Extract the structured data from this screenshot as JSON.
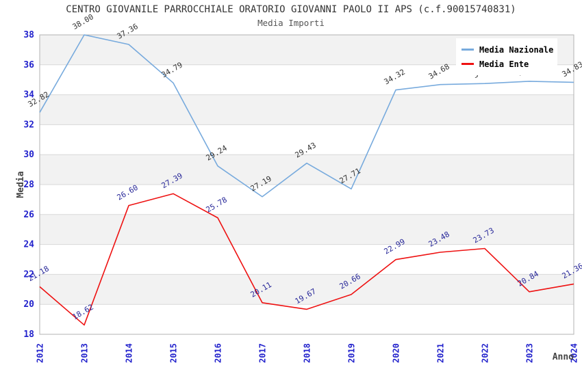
{
  "header": {
    "title": "CENTRO GIOVANILE PARROCCHIALE ORATORIO GIOVANNI PAOLO II APS (c.f.90015740831)",
    "subtitle": "Media Importi"
  },
  "legend": {
    "items": [
      {
        "label": "Media Nazionale",
        "color": "#77aadd"
      },
      {
        "label": "Media Ente",
        "color": "#ee1111"
      }
    ]
  },
  "chart_data": {
    "type": "line",
    "title": "CENTRO GIOVANILE PARROCCHIALE ORATORIO GIOVANNI PAOLO II APS (c.f.90015740831)",
    "subtitle": "Media Importi",
    "xlabel": "Anno",
    "ylabel": "Media",
    "x": [
      2012,
      2013,
      2014,
      2015,
      2016,
      2017,
      2018,
      2019,
      2020,
      2021,
      2022,
      2023,
      2024
    ],
    "series": [
      {
        "name": "Media Nazionale",
        "color": "#77aadd",
        "label_color": "#333333",
        "values": [
          32.82,
          38.0,
          37.36,
          34.79,
          29.24,
          27.19,
          29.43,
          27.71,
          34.32,
          34.68,
          34.75,
          34.9,
          34.83
        ]
      },
      {
        "name": "Media Ente",
        "color": "#ee1111",
        "label_color": "#282899",
        "values": [
          21.18,
          18.62,
          26.6,
          27.39,
          25.78,
          20.11,
          19.67,
          20.66,
          22.99,
          23.48,
          23.73,
          20.84,
          21.36
        ]
      }
    ],
    "ylim": [
      18,
      38
    ],
    "yticks": [
      18,
      20,
      22,
      24,
      26,
      28,
      30,
      32,
      34,
      36,
      38
    ],
    "ytick_step": 2,
    "grid": true,
    "legend_position": "top-right",
    "value_label_decimals": 2,
    "band_fill": "#f2f2f2",
    "gridline_color": "#d8d8d8",
    "frame_color": "#b3b3b3",
    "tick_label_color": "#2222cc",
    "axis_title_color": "#444444"
  }
}
